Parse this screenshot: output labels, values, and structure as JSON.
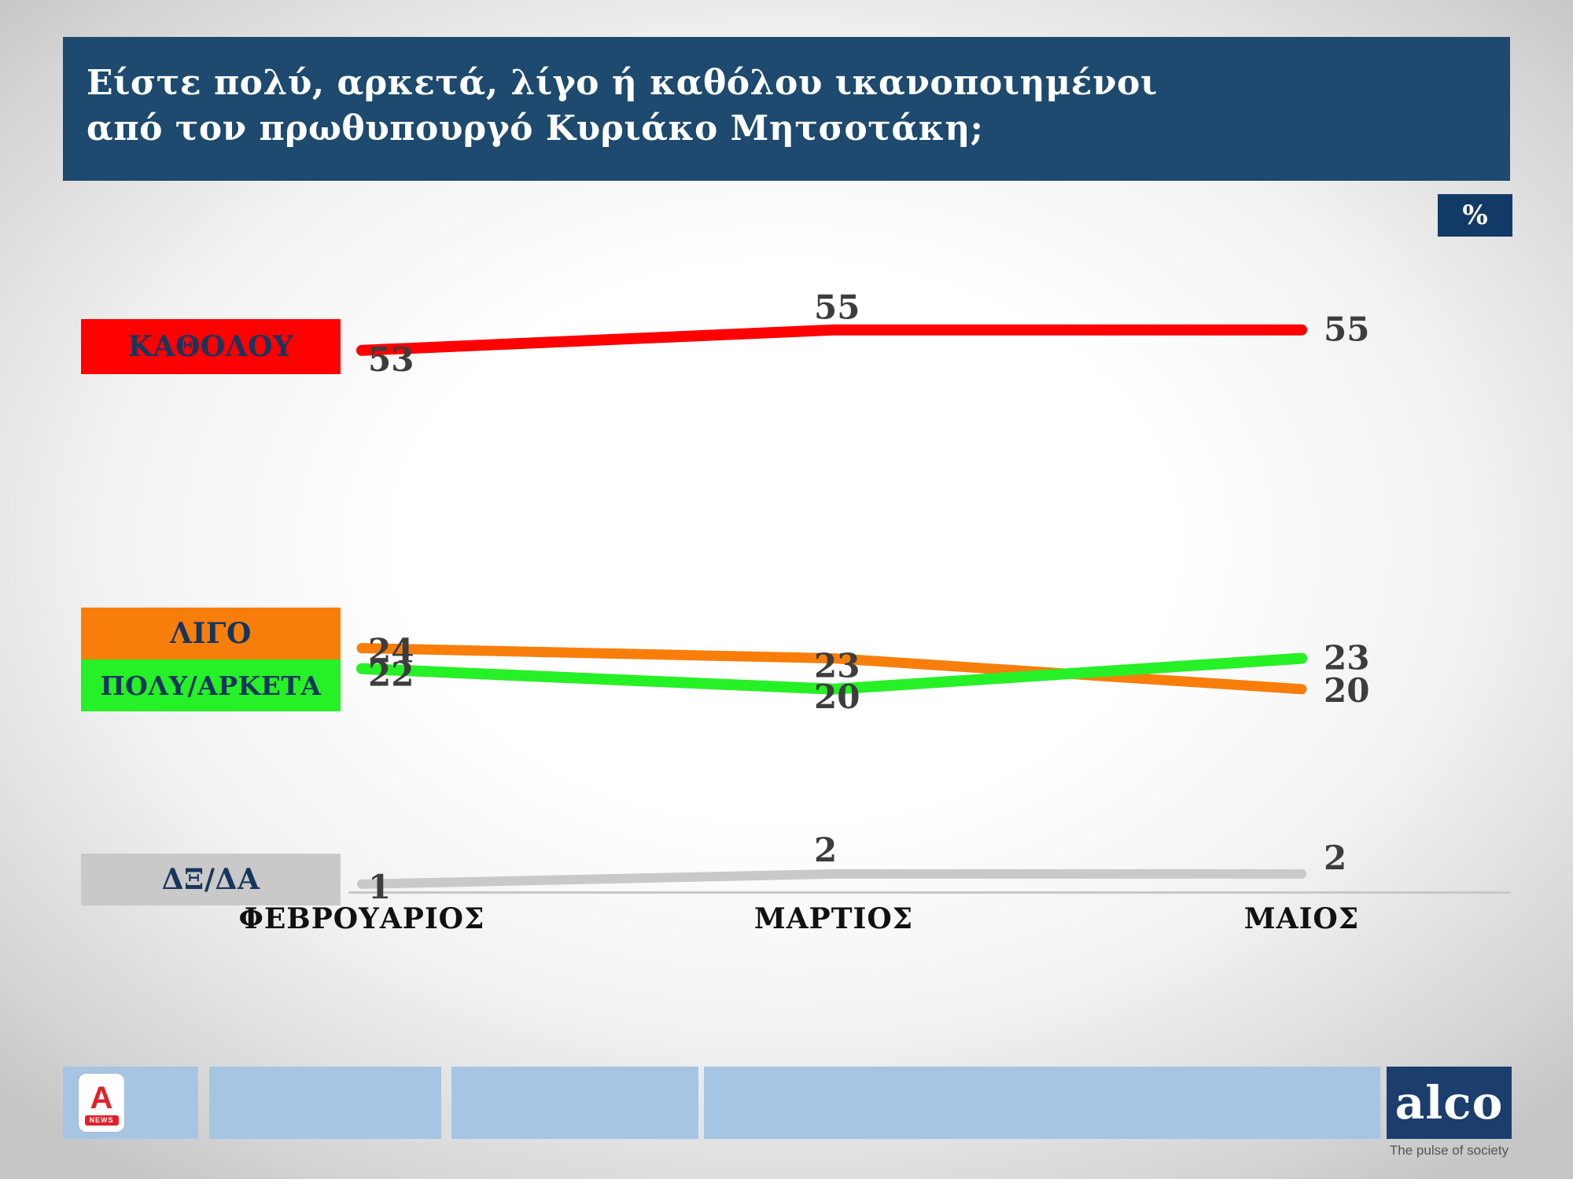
{
  "title": {
    "line1": "Είστε πολύ, αρκετά, λίγο ή καθόλου ικανοποιημένοι",
    "line2": "από τον πρωθυπουργό Κυριάκο Μητσοτάκη;"
  },
  "unit_badge": "%",
  "chart_data": {
    "type": "line",
    "categories": [
      "ΦΕΒΡΟΥΑΡΙΟΣ",
      "ΜΑΡΤΙΟΣ",
      "ΜΑΙΟΣ"
    ],
    "series": [
      {
        "name": "ΚΑΘΟΛΟΥ",
        "color": "#fe0000",
        "values": [
          53,
          55,
          55
        ]
      },
      {
        "name": "ΛΙΓΟ",
        "color": "#f87e0c",
        "values": [
          24,
          23,
          20
        ]
      },
      {
        "name": "ΠΟΛΥ/ΑΡΚΕΤΑ",
        "color": "#26f026",
        "values": [
          22,
          20,
          23
        ]
      },
      {
        "name": "ΔΞ/ΔΑ",
        "color": "#c9c9c9",
        "values": [
          1,
          2,
          2
        ]
      }
    ],
    "ylim": [
      0,
      60
    ],
    "grid": false,
    "legend_position": "left",
    "value_label_color": "#3d3d3d"
  },
  "footer": {
    "alpha_logo_letter": "A",
    "alpha_logo_sub": "NEWS",
    "alco_logo": "alco",
    "alco_tagline": "The pulse of society"
  }
}
